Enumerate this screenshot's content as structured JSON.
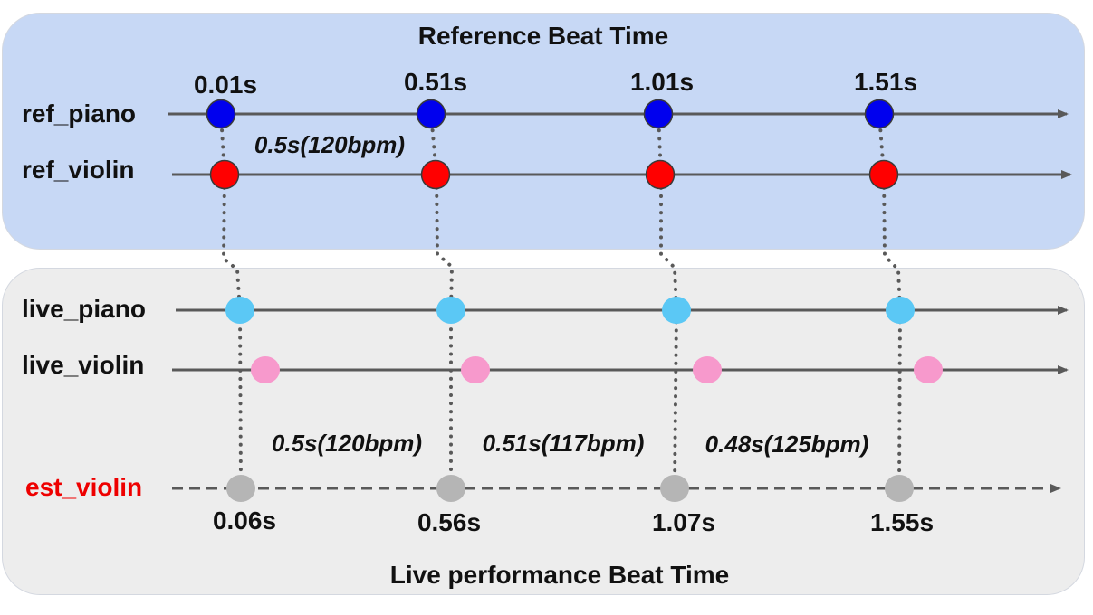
{
  "reference_panel": {
    "title": "Reference Beat Time",
    "color": "#c7d8f5",
    "rows": [
      {
        "label": "ref_piano",
        "dot_color": "#0000ee"
      },
      {
        "label": "ref_violin",
        "dot_color": "#ff0000"
      }
    ],
    "beat_times": [
      "0.01s",
      "0.51s",
      "1.01s",
      "1.51s"
    ],
    "interval_label": "0.5s(120bpm)"
  },
  "live_panel": {
    "title": "Live performance Beat Time",
    "color": "#ededed",
    "rows": [
      {
        "label": "live_piano",
        "dot_color": "#5bc8f5"
      },
      {
        "label": "live_violin",
        "dot_color": "#f799cc"
      }
    ],
    "estimate_row": {
      "label": "est_violin",
      "label_color": "#ee0000",
      "dot_color": "#b5b5b5"
    },
    "beat_times": [
      "0.06s",
      "0.56s",
      "1.07s",
      "1.55s"
    ],
    "interval_labels": [
      "0.5s(120bpm)",
      "0.51s(117bpm)",
      "0.48s(125bpm)"
    ]
  }
}
